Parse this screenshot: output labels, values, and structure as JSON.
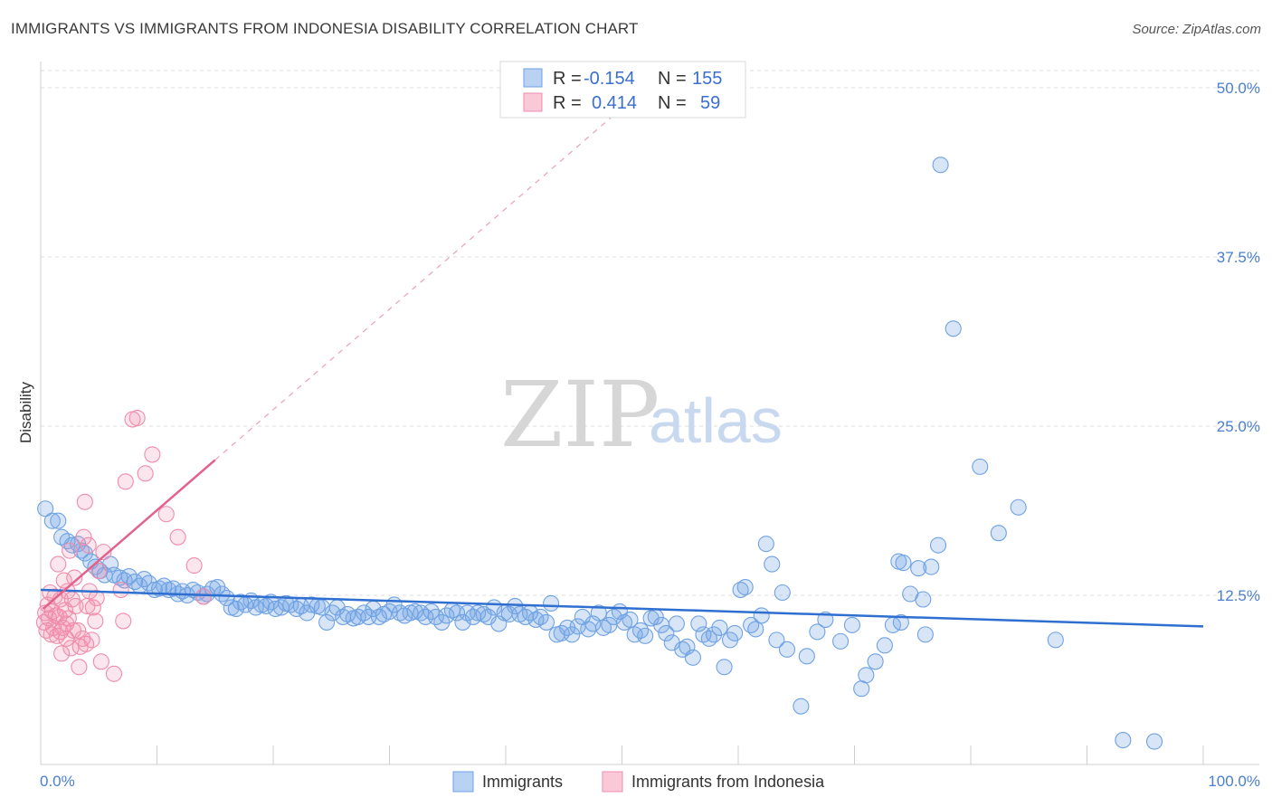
{
  "title": "IMMIGRANTS VS IMMIGRANTS FROM INDONESIA DISABILITY CORRELATION CHART",
  "source": "Source: ZipAtlas.com",
  "watermark": {
    "zip": "ZIP",
    "atlas": "atlas"
  },
  "legend_box": {
    "rows": [
      {
        "r_label": "R =",
        "r_value": "-0.154",
        "n_label": "N =",
        "n_value": "155",
        "color": "#6fa2e4"
      },
      {
        "r_label": "R =",
        "r_value": "0.414",
        "n_label": "N =",
        "n_value": "59",
        "color": "#f08cab"
      }
    ]
  },
  "bottom_legend": [
    {
      "label": "Immigrants",
      "color": "#6fa2e4"
    },
    {
      "label": "Immigrants from Indonesia",
      "color": "#f08cab"
    }
  ],
  "chart_data": {
    "type": "scatter",
    "ylabel": "Disability",
    "xlabel": "",
    "xlim": [
      0,
      100
    ],
    "ylim": [
      0,
      50
    ],
    "y_ticks": [
      {
        "v": 12.5,
        "label": "12.5%"
      },
      {
        "v": 25.0,
        "label": "25.0%"
      },
      {
        "v": 37.5,
        "label": "37.5%"
      },
      {
        "v": 50.0,
        "label": "50.0%"
      }
    ],
    "x_tick_labels": [
      {
        "v": 0,
        "label": "0.0%"
      },
      {
        "v": 100,
        "label": "100.0%"
      }
    ],
    "x_minor_ticks": [
      10,
      20,
      30,
      40,
      50,
      60,
      70,
      80,
      90,
      100
    ],
    "grid": "horizontal dashed",
    "series": [
      {
        "name": "Immigrants",
        "color": "#6fa2e4",
        "trend": {
          "x0": 0,
          "y0": 12.9,
          "x1": 100,
          "y1": 10.2
        },
        "points": [
          [
            0.4,
            18.9
          ],
          [
            1,
            18
          ],
          [
            1.5,
            18
          ],
          [
            1.8,
            16.8
          ],
          [
            2.3,
            16.5
          ],
          [
            2.7,
            16.2
          ],
          [
            3.2,
            16.3
          ],
          [
            3.5,
            15.8
          ],
          [
            3.8,
            15.6
          ],
          [
            4.3,
            15
          ],
          [
            4.7,
            14.6
          ],
          [
            5.1,
            14.3
          ],
          [
            5.5,
            14
          ],
          [
            6,
            14.8
          ],
          [
            6.3,
            14
          ],
          [
            6.8,
            13.8
          ],
          [
            7.2,
            13.6
          ],
          [
            7.6,
            13.9
          ],
          [
            8.1,
            13.5
          ],
          [
            8.5,
            13.2
          ],
          [
            8.9,
            13.7
          ],
          [
            9.3,
            13.4
          ],
          [
            9.8,
            12.9
          ],
          [
            10.2,
            13
          ],
          [
            10.6,
            13.2
          ],
          [
            11,
            12.9
          ],
          [
            11.4,
            13
          ],
          [
            11.8,
            12.6
          ],
          [
            12.2,
            12.8
          ],
          [
            12.6,
            12.5
          ],
          [
            13.1,
            12.9
          ],
          [
            13.5,
            12.7
          ],
          [
            14,
            12.4
          ],
          [
            14.3,
            12.6
          ],
          [
            14.8,
            13
          ],
          [
            15.2,
            13.1
          ],
          [
            15.6,
            12.6
          ],
          [
            16,
            12.3
          ],
          [
            16.4,
            11.6
          ],
          [
            16.8,
            11.5
          ],
          [
            17.2,
            12
          ],
          [
            17.6,
            11.8
          ],
          [
            18.1,
            12.1
          ],
          [
            18.5,
            11.6
          ],
          [
            19,
            11.8
          ],
          [
            19.4,
            11.7
          ],
          [
            19.8,
            12
          ],
          [
            20.2,
            11.5
          ],
          [
            20.7,
            11.6
          ],
          [
            21.1,
            11.9
          ],
          [
            21.5,
            11.8
          ],
          [
            22,
            11.5
          ],
          [
            22.4,
            11.7
          ],
          [
            22.9,
            11.2
          ],
          [
            23.3,
            11.8
          ],
          [
            23.8,
            11.7
          ],
          [
            24.2,
            11.6
          ],
          [
            24.6,
            10.5
          ],
          [
            25.1,
            11.2
          ],
          [
            25.5,
            11.6
          ],
          [
            26,
            10.9
          ],
          [
            26.4,
            11.1
          ],
          [
            26.9,
            10.8
          ],
          [
            27.3,
            10.9
          ],
          [
            27.8,
            11.2
          ],
          [
            28.2,
            10.9
          ],
          [
            28.6,
            11.5
          ],
          [
            29.1,
            10.9
          ],
          [
            29.5,
            11.1
          ],
          [
            30,
            11.3
          ],
          [
            30.4,
            11.8
          ],
          [
            30.9,
            11.2
          ],
          [
            31.3,
            11
          ],
          [
            31.8,
            11.2
          ],
          [
            32.2,
            11.3
          ],
          [
            32.7,
            11.2
          ],
          [
            33.1,
            10.9
          ],
          [
            33.6,
            11.3
          ],
          [
            34,
            10.9
          ],
          [
            34.5,
            10.5
          ],
          [
            34.9,
            11
          ],
          [
            35.4,
            11.4
          ],
          [
            35.8,
            11.2
          ],
          [
            36.3,
            10.5
          ],
          [
            36.7,
            11.2
          ],
          [
            37.2,
            10.9
          ],
          [
            37.6,
            11.2
          ],
          [
            38.1,
            11.1
          ],
          [
            38.5,
            10.9
          ],
          [
            39,
            11.6
          ],
          [
            39.4,
            10.4
          ],
          [
            39.9,
            11.2
          ],
          [
            40.3,
            11.1
          ],
          [
            40.8,
            11.7
          ],
          [
            41.2,
            11.1
          ],
          [
            41.7,
            10.9
          ],
          [
            42.1,
            11.2
          ],
          [
            42.6,
            10.7
          ],
          [
            43,
            10.9
          ],
          [
            43.5,
            10.5
          ],
          [
            43.9,
            11.9
          ],
          [
            44.4,
            9.6
          ],
          [
            44.8,
            9.7
          ],
          [
            45.3,
            10.1
          ],
          [
            45.7,
            9.6
          ],
          [
            46.2,
            10.2
          ],
          [
            46.6,
            10.9
          ],
          [
            47.1,
            10
          ],
          [
            47.5,
            10.4
          ],
          [
            48,
            11.2
          ],
          [
            48.4,
            10.1
          ],
          [
            48.9,
            10.3
          ],
          [
            49.3,
            10.9
          ],
          [
            49.8,
            11.3
          ],
          [
            50.2,
            10.5
          ],
          [
            50.7,
            10.7
          ],
          [
            51.1,
            9.6
          ],
          [
            51.6,
            9.9
          ],
          [
            52,
            9.5
          ],
          [
            52.5,
            10.8
          ],
          [
            52.9,
            10.9
          ],
          [
            53.4,
            10.3
          ],
          [
            53.8,
            9.7
          ],
          [
            54.3,
            9
          ],
          [
            54.7,
            10.4
          ],
          [
            55.2,
            8.5
          ],
          [
            55.6,
            8.7
          ],
          [
            56.1,
            7.9
          ],
          [
            56.6,
            10.4
          ],
          [
            57,
            9.6
          ],
          [
            57.5,
            9.3
          ],
          [
            57.9,
            9.6
          ],
          [
            58.4,
            10.1
          ],
          [
            58.8,
            7.2
          ],
          [
            59.3,
            9.2
          ],
          [
            59.7,
            9.7
          ],
          [
            60.2,
            12.9
          ],
          [
            60.6,
            13.1
          ],
          [
            61.1,
            10.3
          ],
          [
            61.5,
            10
          ],
          [
            62,
            11
          ],
          [
            62.4,
            16.3
          ],
          [
            62.9,
            14.8
          ],
          [
            63.3,
            9.2
          ],
          [
            63.8,
            12.7
          ],
          [
            64.2,
            8.5
          ],
          [
            65.4,
            4.3
          ],
          [
            65.9,
            8
          ],
          [
            66.8,
            9.8
          ],
          [
            67.5,
            10.7
          ],
          [
            69.8,
            10.3
          ],
          [
            70.6,
            5.6
          ],
          [
            71,
            6.6
          ],
          [
            71.8,
            7.6
          ],
          [
            72.6,
            8.8
          ],
          [
            73.3,
            10.3
          ],
          [
            73.8,
            15
          ],
          [
            74.2,
            14.9
          ],
          [
            74.8,
            12.6
          ],
          [
            75.5,
            14.5
          ],
          [
            76.1,
            9.6
          ],
          [
            77.4,
            44.3
          ],
          [
            78.5,
            32.2
          ],
          [
            80.8,
            22
          ],
          [
            82.4,
            17.1
          ],
          [
            84.1,
            19
          ],
          [
            87.3,
            9.2
          ],
          [
            93.1,
            1.8
          ],
          [
            95.8,
            1.7
          ],
          [
            75.9,
            12.2
          ],
          [
            76.6,
            14.6
          ],
          [
            77.2,
            16.2
          ],
          [
            74,
            10.5
          ],
          [
            68.8,
            9.1
          ]
        ]
      },
      {
        "name": "Immigrants from Indonesia",
        "color": "#f08cab",
        "trend": {
          "x0": 0.2,
          "y0": 11.5,
          "x1": 15,
          "y1": 22.5
        },
        "trend_dashed": {
          "x0": 15,
          "y0": 22.5,
          "x1": 50,
          "y1": 48.5
        },
        "points": [
          [
            0.3,
            10.5
          ],
          [
            0.4,
            11.2
          ],
          [
            0.5,
            9.9
          ],
          [
            0.6,
            11.8
          ],
          [
            0.7,
            10.8
          ],
          [
            0.8,
            12.7
          ],
          [
            0.9,
            9.6
          ],
          [
            1,
            11.3
          ],
          [
            1.1,
            10.1
          ],
          [
            1.2,
            12.4
          ],
          [
            1.3,
            11
          ],
          [
            1.4,
            9.5
          ],
          [
            1.5,
            14.8
          ],
          [
            1.6,
            10.9
          ],
          [
            1.7,
            12.2
          ],
          [
            1.8,
            8.2
          ],
          [
            1.9,
            10.1
          ],
          [
            2,
            13.6
          ],
          [
            2.1,
            11.4
          ],
          [
            2.2,
            9.3
          ],
          [
            2.3,
            12.8
          ],
          [
            2.4,
            10.8
          ],
          [
            2.5,
            15.8
          ],
          [
            2.6,
            8.6
          ],
          [
            2.7,
            12.2
          ],
          [
            2.8,
            9.9
          ],
          [
            2.9,
            13.8
          ],
          [
            3,
            11.7
          ],
          [
            3.2,
            9.9
          ],
          [
            3.3,
            7.2
          ],
          [
            3.4,
            8.7
          ],
          [
            3.6,
            9.3
          ],
          [
            3.7,
            16.8
          ],
          [
            3.8,
            19.4
          ],
          [
            3.9,
            8.9
          ],
          [
            4,
            11.7
          ],
          [
            4.1,
            16.2
          ],
          [
            4.2,
            12.8
          ],
          [
            4.4,
            9.2
          ],
          [
            4.5,
            11.6
          ],
          [
            4.7,
            10.6
          ],
          [
            4.8,
            12.3
          ],
          [
            5,
            14.3
          ],
          [
            5.2,
            7.6
          ],
          [
            5.4,
            15.7
          ],
          [
            6.3,
            6.7
          ],
          [
            6.9,
            12.9
          ],
          [
            7.1,
            10.6
          ],
          [
            7.3,
            20.9
          ],
          [
            7.9,
            25.5
          ],
          [
            8.3,
            25.6
          ],
          [
            9,
            21.5
          ],
          [
            9.6,
            22.9
          ],
          [
            10.8,
            18.5
          ],
          [
            11.8,
            16.8
          ],
          [
            13.2,
            14.7
          ],
          [
            14,
            12.4
          ],
          [
            1.7,
            9.8
          ],
          [
            2.2,
            10.4
          ]
        ]
      }
    ]
  }
}
